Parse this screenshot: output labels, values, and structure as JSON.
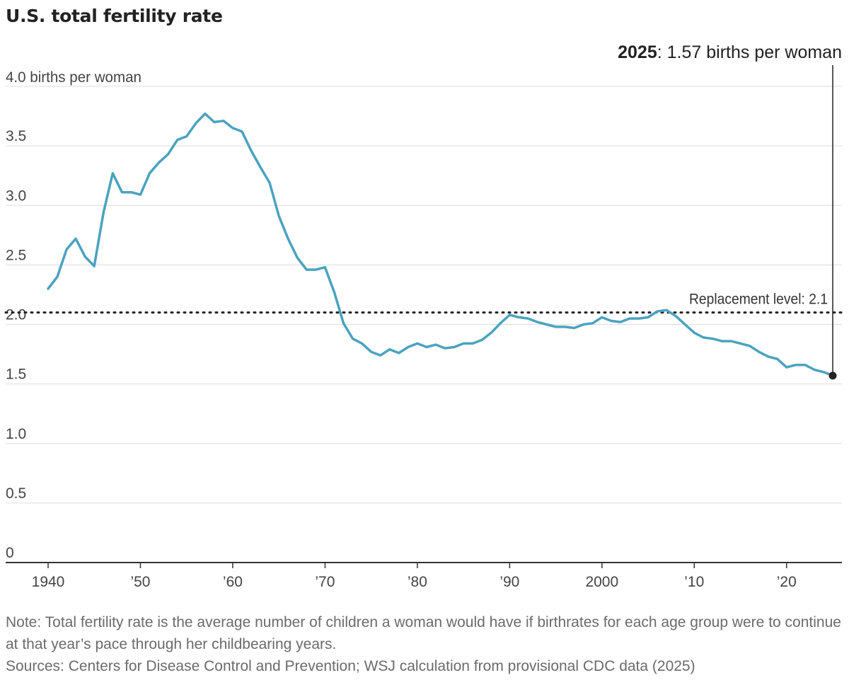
{
  "chart_data": {
    "type": "line",
    "title": "U.S. total fertility rate",
    "ylabel": "births per woman",
    "y_unit_label": "4.0 births per woman",
    "ylim": [
      0,
      4.0
    ],
    "xlim": [
      1940,
      2025
    ],
    "y_ticks": [
      {
        "value": 0,
        "label": "0"
      },
      {
        "value": 0.5,
        "label": "0.5"
      },
      {
        "value": 1.0,
        "label": "1.0"
      },
      {
        "value": 1.5,
        "label": "1.5"
      },
      {
        "value": 2.0,
        "label": "2.0"
      },
      {
        "value": 2.5,
        "label": "2.5"
      },
      {
        "value": 3.0,
        "label": "3.0"
      },
      {
        "value": 3.5,
        "label": "3.5"
      }
    ],
    "x_ticks": [
      {
        "value": 1940,
        "label": "1940"
      },
      {
        "value": 1950,
        "label": "’50"
      },
      {
        "value": 1960,
        "label": "’60"
      },
      {
        "value": 1970,
        "label": "’70"
      },
      {
        "value": 1980,
        "label": "’80"
      },
      {
        "value": 1990,
        "label": "’90"
      },
      {
        "value": 2000,
        "label": "2000"
      },
      {
        "value": 2010,
        "label": "’10"
      },
      {
        "value": 2020,
        "label": "’20"
      }
    ],
    "series": [
      {
        "name": "Total fertility rate",
        "color": "#4aa3bf",
        "x": [
          1940,
          1941,
          1942,
          1943,
          1944,
          1945,
          1946,
          1947,
          1948,
          1949,
          1950,
          1951,
          1952,
          1953,
          1954,
          1955,
          1956,
          1957,
          1958,
          1959,
          1960,
          1961,
          1962,
          1963,
          1964,
          1965,
          1966,
          1967,
          1968,
          1969,
          1970,
          1971,
          1972,
          1973,
          1974,
          1975,
          1976,
          1977,
          1978,
          1979,
          1980,
          1981,
          1982,
          1983,
          1984,
          1985,
          1986,
          1987,
          1988,
          1989,
          1990,
          1991,
          1992,
          1993,
          1994,
          1995,
          1996,
          1997,
          1998,
          1999,
          2000,
          2001,
          2002,
          2003,
          2004,
          2005,
          2006,
          2007,
          2008,
          2009,
          2010,
          2011,
          2012,
          2013,
          2014,
          2015,
          2016,
          2017,
          2018,
          2019,
          2020,
          2021,
          2022,
          2023,
          2024,
          2025
        ],
        "y": [
          2.3,
          2.4,
          2.63,
          2.72,
          2.57,
          2.49,
          2.94,
          3.27,
          3.11,
          3.11,
          3.09,
          3.27,
          3.36,
          3.43,
          3.55,
          3.58,
          3.69,
          3.77,
          3.7,
          3.71,
          3.65,
          3.62,
          3.46,
          3.32,
          3.19,
          2.91,
          2.72,
          2.56,
          2.46,
          2.46,
          2.48,
          2.27,
          2.01,
          1.88,
          1.84,
          1.77,
          1.74,
          1.79,
          1.76,
          1.81,
          1.84,
          1.81,
          1.83,
          1.8,
          1.81,
          1.84,
          1.84,
          1.87,
          1.93,
          2.01,
          2.08,
          2.06,
          2.05,
          2.02,
          2.0,
          1.98,
          1.98,
          1.97,
          2.0,
          2.01,
          2.06,
          2.03,
          2.02,
          2.05,
          2.05,
          2.06,
          2.11,
          2.12,
          2.07,
          2.0,
          1.93,
          1.89,
          1.88,
          1.86,
          1.86,
          1.84,
          1.82,
          1.77,
          1.73,
          1.71,
          1.64,
          1.66,
          1.66,
          1.62,
          1.6,
          1.57
        ]
      }
    ],
    "reference_line": {
      "value": 2.1,
      "label": "Replacement level: 2.1",
      "style": "dotted"
    },
    "annotation": {
      "x": 2025,
      "y": 1.57,
      "year": "2025",
      "text": ": 1.57 births per woman"
    }
  },
  "note": "Note: Total fertility rate is the average number of children a woman would have if birthrates for each age group were to continue at that year’s pace through her childbearing years.",
  "sources": "Sources: Centers for Disease Control and Prevention; WSJ calculation from provisional CDC data (2025)"
}
